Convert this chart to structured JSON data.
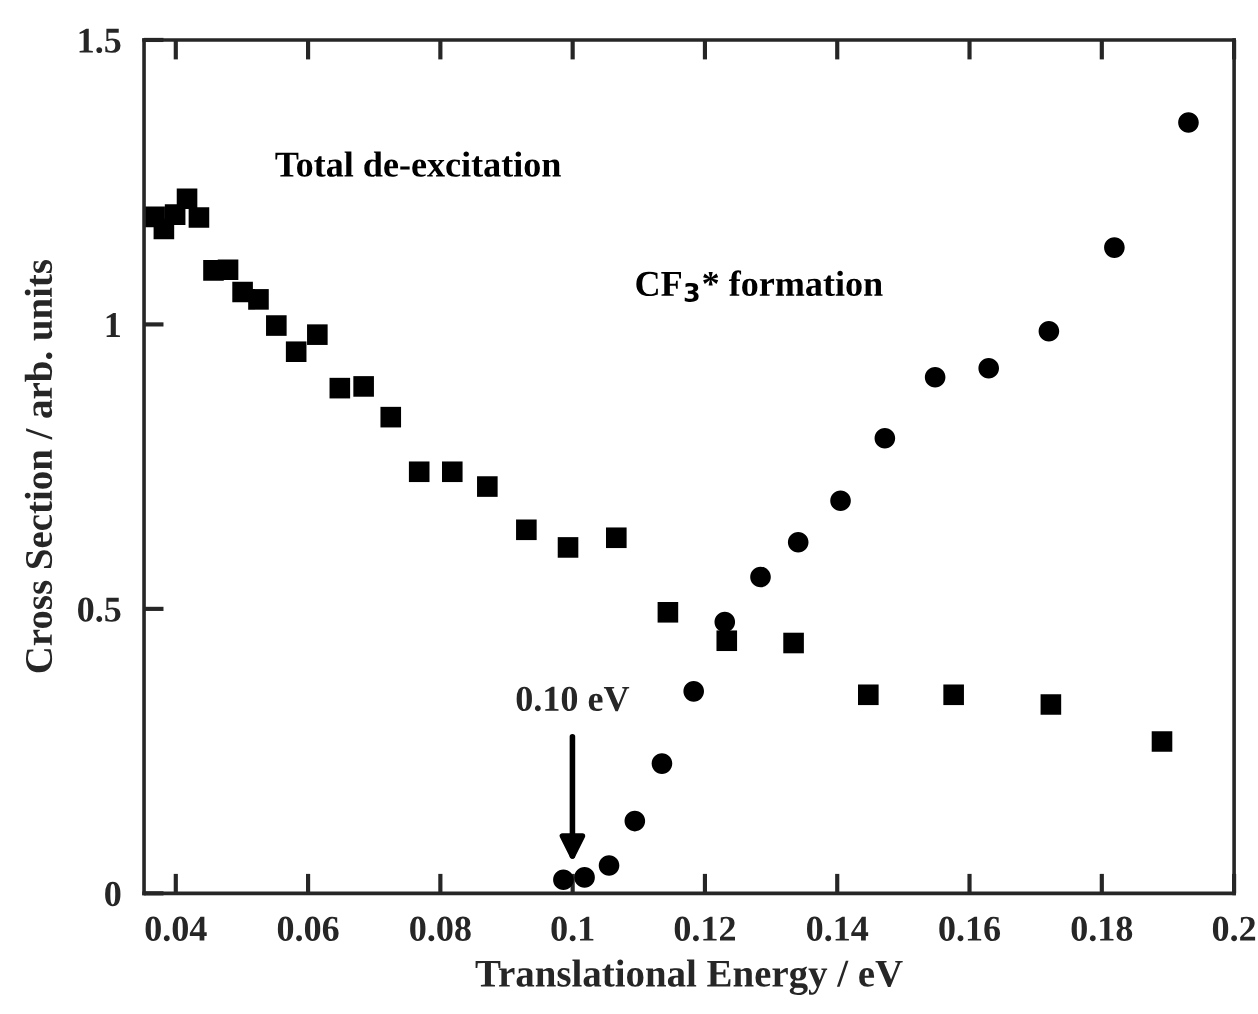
{
  "chart_data": {
    "type": "scatter",
    "xlabel": "Translational Energy / eV",
    "ylabel": "Cross Section / arb. units",
    "xlim": [
      0.0352,
      0.2
    ],
    "ylim": [
      0,
      1.5
    ],
    "xticks": [
      0.04,
      0.06,
      0.08,
      0.1,
      0.12,
      0.14,
      0.16,
      0.18,
      0.2
    ],
    "yticks": [
      0,
      0.5,
      1,
      1.5
    ],
    "grid": false,
    "legend": false,
    "series": [
      {
        "name": "Total de-excitation",
        "color": "#000000",
        "marker": "square",
        "x": [
          0.0368,
          0.0382,
          0.0399,
          0.0417,
          0.0435,
          0.0457,
          0.0479,
          0.0501,
          0.0525,
          0.0552,
          0.0582,
          0.0614,
          0.0648,
          0.0684,
          0.0725,
          0.0768,
          0.0818,
          0.0871,
          0.093,
          0.0993,
          0.1066,
          0.1144,
          0.1233,
          0.1334,
          0.1447,
          0.1576,
          0.1723,
          0.1891
        ],
        "values": [
          1.189,
          1.168,
          1.193,
          1.221,
          1.188,
          1.095,
          1.096,
          1.057,
          1.044,
          0.998,
          0.952,
          0.982,
          0.888,
          0.891,
          0.837,
          0.741,
          0.741,
          0.715,
          0.639,
          0.608,
          0.625,
          0.494,
          0.444,
          0.44,
          0.349,
          0.349,
          0.332,
          0.267
        ]
      },
      {
        "name": "CF$_{3}$* formation",
        "color": "#000000",
        "marker": "circle",
        "x": [
          0.0986,
          0.1018,
          0.1055,
          0.1094,
          0.1135,
          0.1183,
          0.123,
          0.1284,
          0.1341,
          0.1405,
          0.1472,
          0.1548,
          0.1629,
          0.172,
          0.1819,
          0.1931
        ],
        "values": [
          0.024,
          0.028,
          0.049,
          0.127,
          0.228,
          0.355,
          0.477,
          0.556,
          0.617,
          0.69,
          0.8,
          0.907,
          0.923,
          0.988,
          1.135,
          1.355
        ]
      }
    ],
    "annotations": [
      "0.10 eV"
    ]
  }
}
